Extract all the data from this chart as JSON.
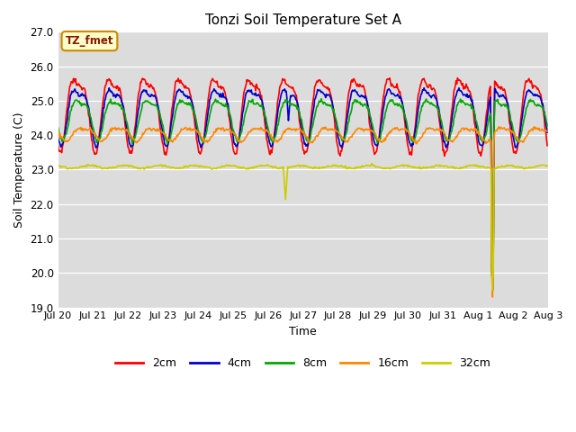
{
  "title": "Tonzi Soil Temperature Set A",
  "xlabel": "Time",
  "ylabel": "Soil Temperature (C)",
  "ylim": [
    19.0,
    27.0
  ],
  "yticks": [
    19.0,
    20.0,
    21.0,
    22.0,
    23.0,
    24.0,
    25.0,
    26.0,
    27.0
  ],
  "annotation": "TZ_fmet",
  "bg_color": "#dcdcdc",
  "fig_color": "#ffffff",
  "series": {
    "2cm": {
      "color": "#ff0000",
      "lw": 1.2
    },
    "4cm": {
      "color": "#0000cc",
      "lw": 1.2
    },
    "8cm": {
      "color": "#00aa00",
      "lw": 1.2
    },
    "16cm": {
      "color": "#ff8800",
      "lw": 1.2
    },
    "32cm": {
      "color": "#cccc00",
      "lw": 1.2
    }
  },
  "xtick_labels": [
    "Jul 20",
    "Jul 21",
    "Jul 22",
    "Jul 23",
    "Jul 24",
    "Jul 25",
    "Jul 26",
    "Jul 27",
    "Jul 28",
    "Jul 29",
    "Jul 30",
    "Jul 31",
    "Aug 1",
    "Aug 2",
    "Aug 3"
  ],
  "legend_colors": [
    "#ff0000",
    "#0000cc",
    "#00aa00",
    "#ff8800",
    "#cccc00"
  ],
  "legend_labels": [
    "2cm",
    "4cm",
    "8cm",
    "16cm",
    "32cm"
  ]
}
